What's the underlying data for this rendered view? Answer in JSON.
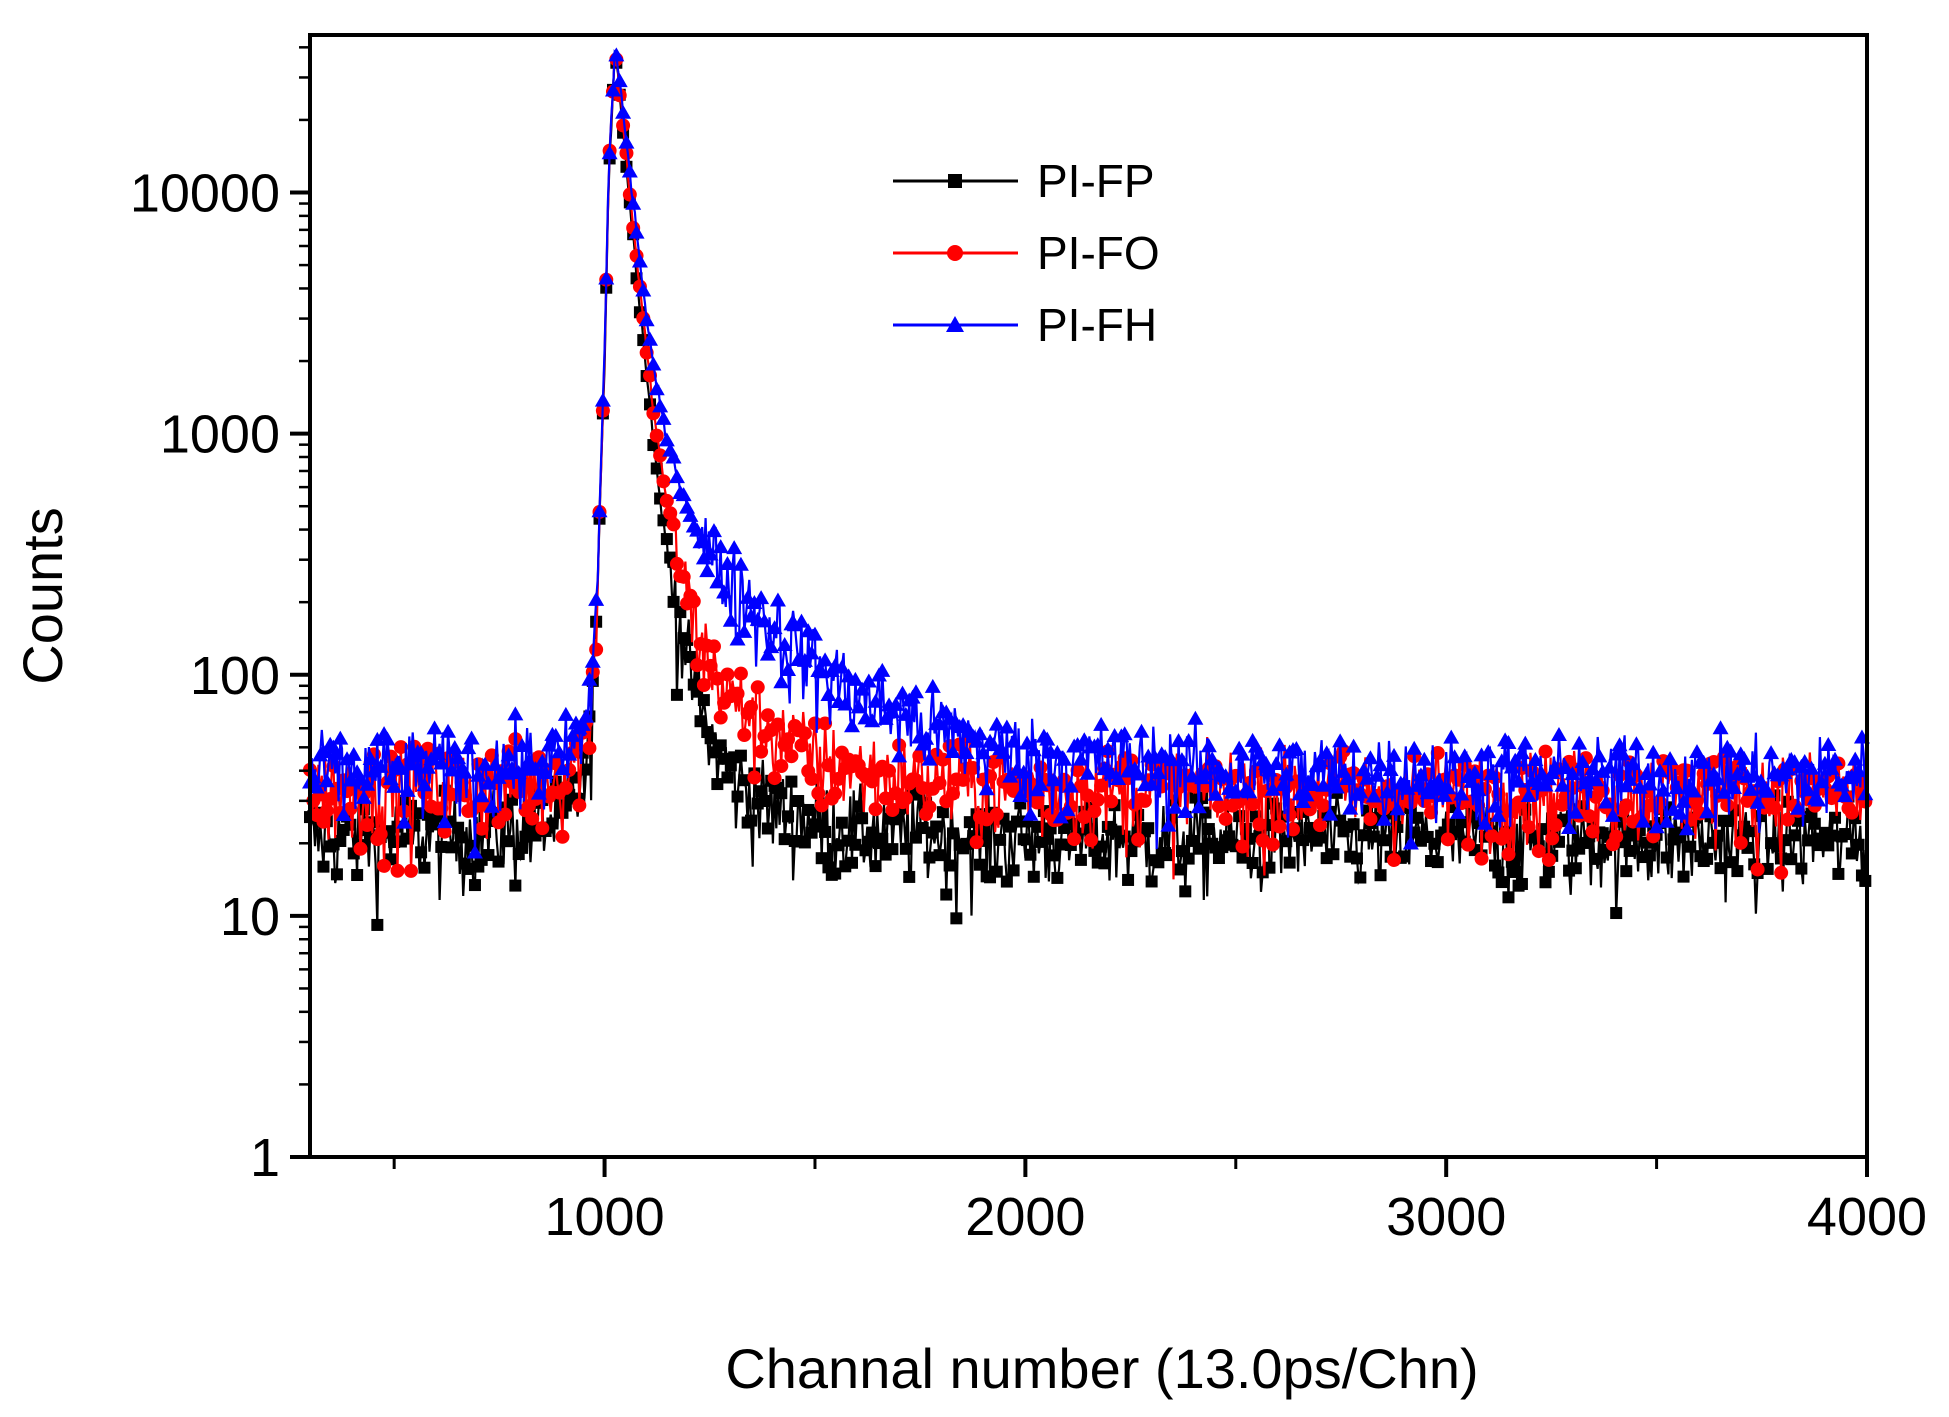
{
  "chart_data": {
    "type": "scatter",
    "title": "",
    "xlabel": "Channal number (13.0ps/Chn)",
    "ylabel": "Counts",
    "xlim": [
      300,
      4000
    ],
    "ylim": [
      1,
      45000
    ],
    "yscale": "log",
    "x_ticks": [
      1000,
      2000,
      3000,
      4000
    ],
    "x_tick_labels": [
      "1000",
      "2000",
      "3000",
      "4000"
    ],
    "y_ticks": [
      1,
      10,
      100,
      1000,
      10000
    ],
    "y_tick_labels": [
      "1",
      "10",
      "100",
      "1000",
      "10000"
    ],
    "grid": false,
    "legend_position": "top-center",
    "series": [
      {
        "name": "PI-FP",
        "color": "#000000",
        "marker": "square",
        "peak_channel": 1025,
        "peak_counts": 40000,
        "background_counts": 21,
        "points": [
          [
            300,
            21
          ],
          [
            500,
            22
          ],
          [
            700,
            22
          ],
          [
            900,
            25
          ],
          [
            960,
            40
          ],
          [
            980,
            150
          ],
          [
            1000,
            2000
          ],
          [
            1010,
            12000
          ],
          [
            1025,
            40000
          ],
          [
            1040,
            22000
          ],
          [
            1060,
            9000
          ],
          [
            1080,
            4000
          ],
          [
            1100,
            1800
          ],
          [
            1120,
            800
          ],
          [
            1150,
            300
          ],
          [
            1200,
            110
          ],
          [
            1250,
            55
          ],
          [
            1300,
            38
          ],
          [
            1400,
            28
          ],
          [
            1600,
            23
          ],
          [
            2000,
            21
          ],
          [
            3000,
            21
          ],
          [
            4000,
            21
          ]
        ]
      },
      {
        "name": "PI-FO",
        "color": "#ff0000",
        "marker": "circle",
        "peak_channel": 1025,
        "peak_counts": 40000,
        "background_counts": 33,
        "points": [
          [
            300,
            33
          ],
          [
            500,
            34
          ],
          [
            700,
            35
          ],
          [
            900,
            38
          ],
          [
            960,
            55
          ],
          [
            980,
            170
          ],
          [
            1000,
            2100
          ],
          [
            1010,
            12500
          ],
          [
            1025,
            40000
          ],
          [
            1040,
            23000
          ],
          [
            1060,
            10000
          ],
          [
            1080,
            4600
          ],
          [
            1100,
            2200
          ],
          [
            1120,
            1100
          ],
          [
            1150,
            500
          ],
          [
            1200,
            200
          ],
          [
            1250,
            110
          ],
          [
            1300,
            80
          ],
          [
            1400,
            58
          ],
          [
            1500,
            46
          ],
          [
            1600,
            40
          ],
          [
            1800,
            36
          ],
          [
            2000,
            34
          ],
          [
            3000,
            33
          ],
          [
            4000,
            33
          ]
        ]
      },
      {
        "name": "PI-FH",
        "color": "#0000ff",
        "marker": "triangle",
        "peak_channel": 1025,
        "peak_counts": 40000,
        "background_counts": 38,
        "points": [
          [
            300,
            38
          ],
          [
            500,
            40
          ],
          [
            700,
            41
          ],
          [
            900,
            44
          ],
          [
            960,
            60
          ],
          [
            980,
            180
          ],
          [
            1000,
            2200
          ],
          [
            1010,
            13000
          ],
          [
            1025,
            40000
          ],
          [
            1040,
            25000
          ],
          [
            1060,
            12000
          ],
          [
            1080,
            6000
          ],
          [
            1100,
            3000
          ],
          [
            1120,
            1700
          ],
          [
            1150,
            900
          ],
          [
            1200,
            480
          ],
          [
            1250,
            320
          ],
          [
            1300,
            240
          ],
          [
            1400,
            160
          ],
          [
            1500,
            110
          ],
          [
            1600,
            82
          ],
          [
            1800,
            58
          ],
          [
            2000,
            46
          ],
          [
            2500,
            40
          ],
          [
            3000,
            38
          ],
          [
            4000,
            38
          ]
        ]
      }
    ]
  }
}
